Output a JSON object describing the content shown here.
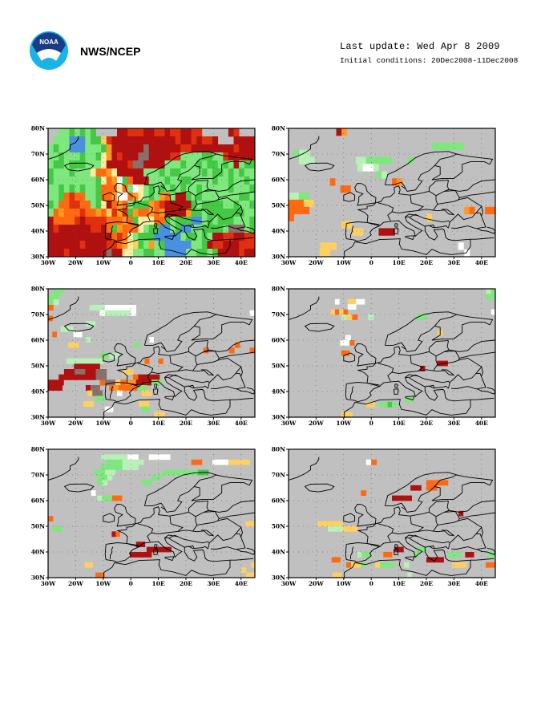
{
  "header": {
    "org_name": "NWS/NCEP",
    "last_update": "Last update: Wed Apr 8 2009",
    "initial_conditions": "Initial conditions: 20Dec2008-11Dec2008",
    "logo_name": "NOAA"
  },
  "map": {
    "lat_labels": [
      "80N",
      "70N",
      "60N",
      "50N",
      "40N",
      "30N"
    ],
    "lon_labels": [
      "30W",
      "20W",
      "10W",
      "0",
      "10E",
      "20E",
      "30E",
      "40E"
    ],
    "land_color": "#c0c0c0",
    "colors": {
      "g": "#44c944",
      "G": "#7ee77e",
      "L": "#b9f0b9",
      "W": "#ffffff",
      "y": "#ffeea0",
      "Y": "#ffd060",
      "o": "#ff9a20",
      "O": "#ff6a10",
      "r": "#e03010",
      "R": "#b01010",
      "b": "#4a90e0",
      "B": "#8a7068"
    }
  },
  "panels": [
    {
      "id": "panel-1",
      "rows": [
        "..GGgGgGg....RRrrrRRrrRrrRRrr.....Rr...",
        ".GGGbbbGggYrRRRRRRRRRRRRrRRrRrrR...RRRR",
        "GgGGbbbGGGgoRRRRRRBRRRRRRrrRRRRRRRRrRRR",
        "GGgGGGgGGgyoRrRRRBBRRRRrrGGGGggGGrRRRRR",
        "GggGgggGGGyRRRRrBBRRRRGGGgGGgGggGgGRGgg",
        "gGGGgGGGyOOoyRRRRRGGGgGggGGGGgGggGgGgGG",
        "gGGGGGGGGgyOoWgORRRGGGgGGggGGGGgGGgGGgG",
        "GGgGgGgGGgOOOyOGWyGgGgGgGgGGgGGGGGgGGGg",
        "GGgOrOOGGgOOoWWOoyGgGoOGRRgGgGGGGGGGggG",
        "gGOOrrOOGgyROoOGgggoOrRRRRRgGggggGGgGGg",
        "GOoOOOrOOoOYrorgoOOoOoRRRRoggGgggggggGG",
        "ROOOOrRrrrrOOOoOgyyyOOgGgggbbGgGgggGGGg",
        "RrRRRRRRrrROgoOOOyGggbbGgbbGGggggGBBBGg",
        "RRRRRRRRRRRROrOyGgggbbbbbGggGgGRRrrRRrr",
        "RRRRRRrRRRRrrOoyYgGoGgbbbbbGGgRrrRRRrrr",
        "RRRrRRRRRRRBRRyyGGggGGbbbbGGggGgRRRRrRR"
      ]
    },
    {
      "id": "panel-2",
      "rows": [
        ".........Ro............................",
        ".......................................",
        "...........................GGGGGG......",
        ".GLL..................................",
        "..LLL........LLGGGGG...G................",
        ".............LWWL......................",
        ".................GL.....................",
        "........O...........Oo..................",
        "..........OO............................",
        "LLGG....................................",
        "OOOYY....................................",
        "OOOO..............................oO..OO",
        "O.........................Y.........",
        "..........YY..........................",
        "............YY...RRR...................",
        ".......................................",
        "......YYY.......................W......",
        "......YY..........................W....."
      ]
    },
    {
      "id": "panel-3",
      "rows": [
        ".GG.....................................",
        "GG......................................",
        "GL.....................................",
        "O.......LLLWWWWWW.......................",
        "..........WLLLLLW......................W",
        "O..............................................",
        "........LL..................................",
        "...LLL............................................",
        ".O....WW.........................................",
        ".........L..............W........................",
        "....YY...........G...................O...",
        "..............................O....O...O",
        "...........GGLL.............................",
        "....LLLLLLLL.........O..O....................",
        "......RRRRRR....................................",
        "...RRBBRRBB...YY.......................",
        "..RRRRRRRBB.....ORRRR..................",
        "RRR.......OBBYOooRRRGG..................",
        "RRR.....RBB..OoOOOOGG.......................",
        "........YBB...W....YY.....................",
        "..........GG................................",
        ".......YY.........YY.....................",
        "..............WW.......GG..........................",
        "....................YY......."
      ]
    },
    {
      "id": "panel-4",
      "rows": [
        "...........................................LG",
        ".........................................GG",
        "...........W..YYWW...............................",
        "..............WW.................................",
        "..........YOYO..................................W",
        "..........LYO..L........GG..........",
        ".........................................",
        "..................................",
        "...............................Y...........",
        "...........W............................",
        "...........WWO..............................",
        ".........................................",
        ".............OO....................................",
        ".....................................................",
        "............................RR.......",
        "............................R...............",
        "..............................................",
        ".....................................................",
        "....................................................",
        "....................................................",
        ".....................................................",
        "...........................GG...................",
        "..................YY.GGgG.......................",
        "...................................................",
        "..........YY........................."
      ]
    },
    {
      "id": "panel-5",
      "rows": [
        "..........................................",
        "..........LLLLLWW..WWWW...........",
        "...........GGGLLLL.........OO..WWWYYYY",
        "..........GGGGLLL...................",
        ".........GGLL.........GGGGGGGgg.........",
        "..........GGL........GG...................",
        "..........GL.......GG.....................",
        ".............................................",
        "..........W.....................................",
        "..........LGGOO...........................",
        "...........................................",
        "...........................................",
        "..........................................",
        "O..........................................",
        "..........................................YY",
        ".GG..........................................",
        "................RO..................................",
        "....................................................",
        "....................RR.........................",
        "....................RRRRR.................",
        "...................RRRRR........................",
        "..................................................",
        ".........YY.......................................Y",
        "...........................................Y..",
        "...........OO.................................YY"
      ]
    },
    {
      "id": "panel-6",
      "rows": [
        "...........................................",
        "...........................................",
        "...............WO.......................",
        "..............................................",
        ".........................................",
        "..........................................",
        "................................OOOOO...........",
        ".......................RR.OO....",
        "..............O.........................",
        ".....................RRRR.................",
        "..................................................",
        "..........................................",
        ".....................................R.......",
        "...................................................",
        ".......YYYYYY.....................................",
        "........LLLYYY............................",
        "......................................................",
        "...........................................",
        ".................................................",
        ".......................RR...GG...............",
        "................LGG...OO.....G.......GGG.RR...GG",
        "..........OO....................RRRR............",
        "............OYYG..YGGG..L.........YYY....OO",
        "..............................................",
        "..........YY...............L..................."
      ]
    }
  ]
}
